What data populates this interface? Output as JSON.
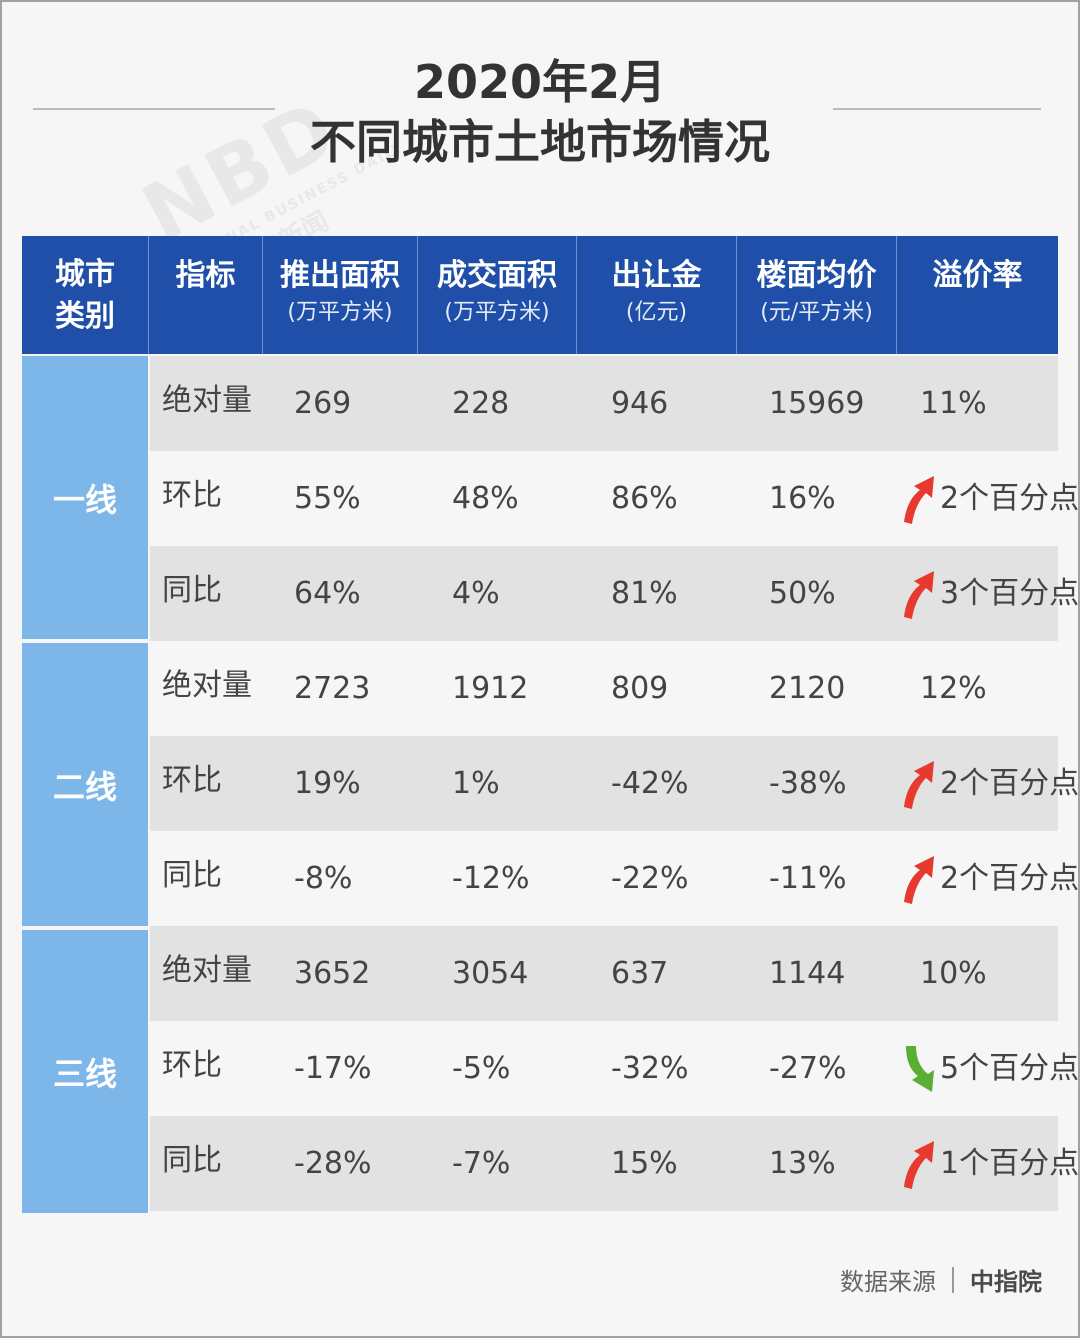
{
  "title": {
    "line1": "2020年2月",
    "line2": "不同城市土地市场情况"
  },
  "watermark": {
    "logo": "NBD",
    "sub": "NATIONAL BUSINESS DAILY",
    "cn": "每日经济新闻"
  },
  "header": [
    {
      "title": "城市",
      "title2": "类别",
      "unit": ""
    },
    {
      "title": "指标",
      "unit": ""
    },
    {
      "title": "推出面积",
      "unit": "(万平方米)"
    },
    {
      "title": "成交面积",
      "unit": "(万平方米)"
    },
    {
      "title": "出让金",
      "unit": "(亿元)"
    },
    {
      "title": "楼面均价",
      "unit": "(元/平方米)"
    },
    {
      "title": "溢价率",
      "unit": ""
    }
  ],
  "groups": [
    {
      "name": "一线",
      "rows": [
        {
          "metric": "绝对量",
          "launch": "269",
          "deal": "228",
          "fee": "946",
          "price": "15969",
          "premium": "11%",
          "trend": ""
        },
        {
          "metric": "环比",
          "launch": "55%",
          "deal": "48%",
          "fee": "86%",
          "price": "16%",
          "premium": "2个百分点",
          "trend": "up"
        },
        {
          "metric": "同比",
          "launch": "64%",
          "deal": "4%",
          "fee": "81%",
          "price": "50%",
          "premium": "3个百分点",
          "trend": "up"
        }
      ]
    },
    {
      "name": "二线",
      "rows": [
        {
          "metric": "绝对量",
          "launch": "2723",
          "deal": "1912",
          "fee": "809",
          "price": "2120",
          "premium": "12%",
          "trend": ""
        },
        {
          "metric": "环比",
          "launch": "19%",
          "deal": "1%",
          "fee": "-42%",
          "price": "-38%",
          "premium": "2个百分点",
          "trend": "up"
        },
        {
          "metric": "同比",
          "launch": "-8%",
          "deal": "-12%",
          "fee": "-22%",
          "price": "-11%",
          "premium": "2个百分点",
          "trend": "up"
        }
      ]
    },
    {
      "name": "三线",
      "rows": [
        {
          "metric": "绝对量",
          "launch": "3652",
          "deal": "3054",
          "fee": "637",
          "price": "1144",
          "premium": "10%",
          "trend": ""
        },
        {
          "metric": "环比",
          "launch": "-17%",
          "deal": "-5%",
          "fee": "-32%",
          "price": "-27%",
          "premium": "5个百分点",
          "trend": "down"
        },
        {
          "metric": "同比",
          "launch": "-28%",
          "deal": "-7%",
          "fee": "15%",
          "price": "13%",
          "premium": "1个百分点",
          "trend": "up"
        }
      ]
    }
  ],
  "colors": {
    "header": "#1f4fa8",
    "group": "#7db6e8",
    "up": "#e8392f",
    "down": "#5aae32"
  },
  "source": {
    "label": "数据来源",
    "org": "中指院"
  }
}
